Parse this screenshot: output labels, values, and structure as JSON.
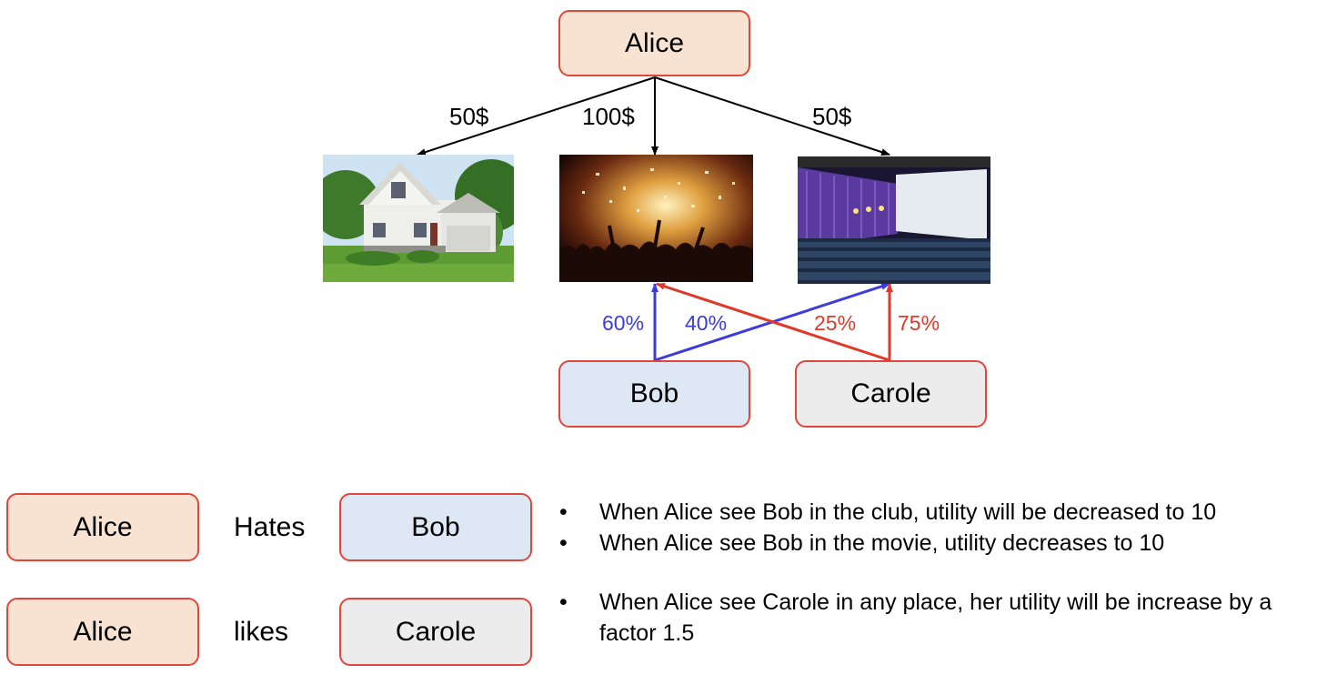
{
  "top_node": {
    "label": "Alice"
  },
  "costs": {
    "house": "50$",
    "club": "100$",
    "cinema": "50$"
  },
  "places": {
    "house": "house-image",
    "club": "club-image",
    "cinema": "cinema-image"
  },
  "bob_probs": {
    "club": "60%",
    "cinema": "40%"
  },
  "carole_probs": {
    "club": "25%",
    "cinema": "75%"
  },
  "bottom_nodes": {
    "bob": "Bob",
    "carole": "Carole"
  },
  "relations": [
    {
      "subject": "Alice",
      "verb": "Hates",
      "object": "Bob"
    },
    {
      "subject": "Alice",
      "verb": "likes",
      "object": "Carole"
    }
  ],
  "notes": [
    "When Alice see Bob in the club, utility will be decreased to 10",
    "When Alice see Bob in the movie, utility decreases to 10",
    "When Alice see Carole in any place, her utility will be increase by a factor 1.5"
  ],
  "colors": {
    "box_border": "#e0473a",
    "alice_fill": "#f8e3d3",
    "bob_fill": "#dde8f4",
    "carole_fill": "#ececec",
    "bob_edge": "#3b3be0",
    "carole_edge": "#e0382a"
  }
}
